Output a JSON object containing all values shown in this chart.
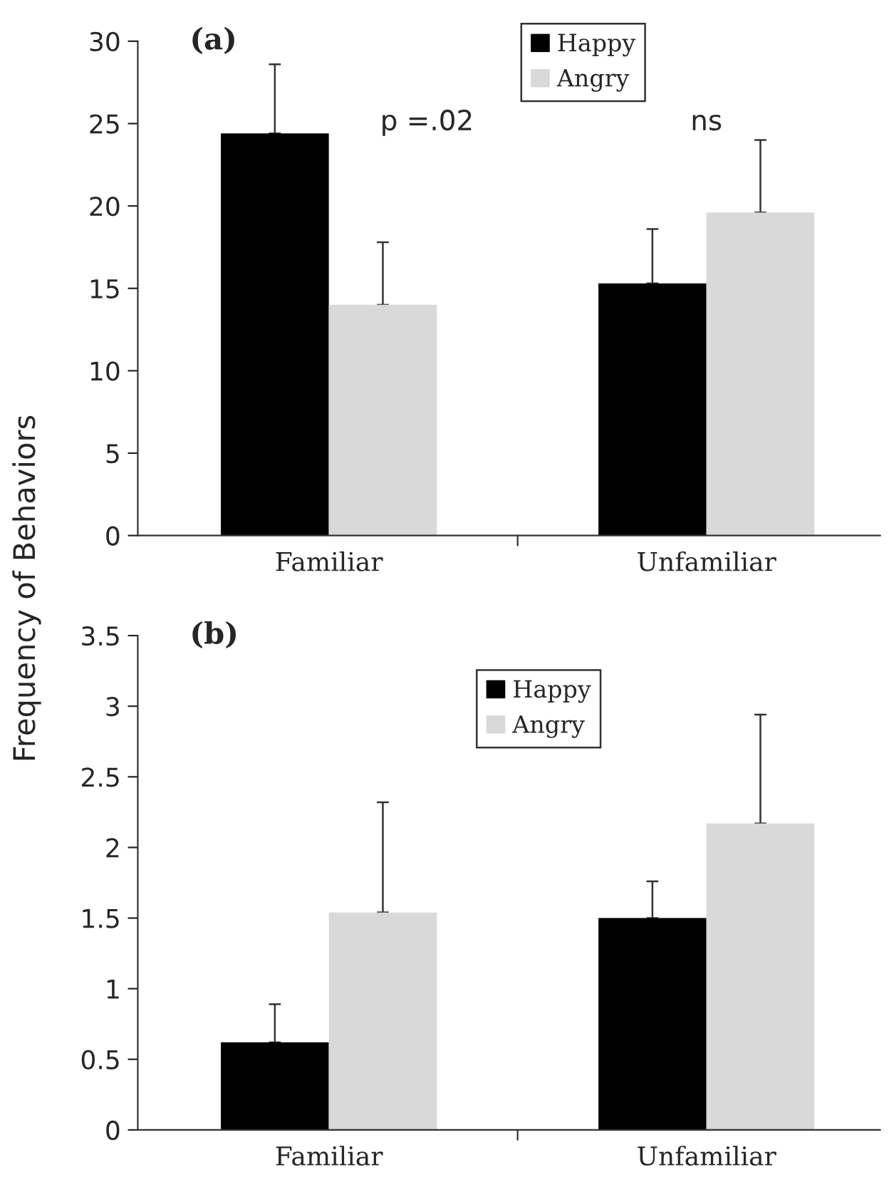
{
  "chart_data": [
    {
      "type": "bar",
      "ylabel": "Frequency of Behaviors",
      "annotations": [
        "(a)",
        "p =.02",
        "ns"
      ],
      "categories": [
        "Familiar",
        "Unfamiliar"
      ],
      "series": [
        {
          "name": "Happy",
          "color": "#000000",
          "values": [
            24.4,
            15.3
          ],
          "errors": [
            [
              24.4,
              28.6
            ],
            [
              15.3,
              18.6
            ]
          ]
        },
        {
          "name": "Angry",
          "color": "#d9d9d9",
          "values": [
            14.0,
            19.6
          ],
          "errors": [
            [
              14.0,
              17.8
            ],
            [
              19.6,
              24.0
            ]
          ]
        }
      ],
      "ylim": [
        0,
        30
      ],
      "yticks": [
        0,
        5,
        10,
        15,
        20,
        25,
        30
      ],
      "legend": "top",
      "grid": false
    },
    {
      "type": "bar",
      "annotations": [
        "(b)"
      ],
      "categories": [
        "Familiar",
        "Unfamiliar"
      ],
      "series": [
        {
          "name": "Happy",
          "color": "#000000",
          "values": [
            0.62,
            1.5
          ],
          "errors": [
            [
              0.62,
              0.89
            ],
            [
              1.5,
              1.76
            ]
          ]
        },
        {
          "name": "Angry",
          "color": "#d9d9d9",
          "values": [
            1.54,
            2.17
          ],
          "errors": [
            [
              1.54,
              2.32
            ],
            [
              2.17,
              2.94
            ]
          ]
        }
      ],
      "ylim": [
        0,
        3.5
      ],
      "yticks": [
        0,
        0.5,
        1,
        1.5,
        2,
        2.5,
        3,
        3.5
      ],
      "legend": "top",
      "grid": false
    }
  ]
}
